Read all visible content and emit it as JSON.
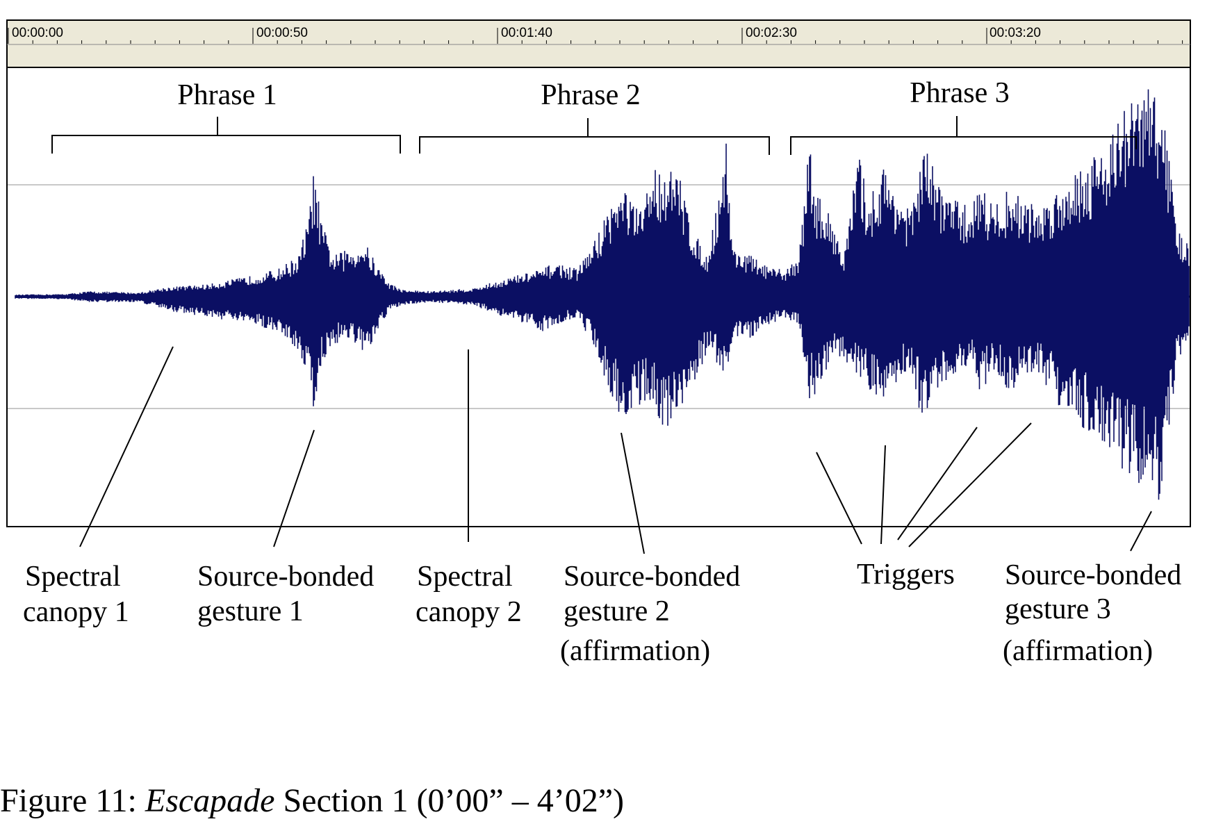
{
  "timeline": {
    "ticks": [
      "00:00:00",
      "00:00:50",
      "00:01:40",
      "00:02:30",
      "00:03:20"
    ]
  },
  "colors": {
    "waveform": "#0b0f63",
    "ruler_bg": "#ece9d8",
    "grid": "#c8c8c8"
  },
  "phrases": [
    "Phrase 1",
    "Phrase 2",
    "Phrase 3"
  ],
  "annotations": {
    "spectral_canopy_1": [
      "Spectral",
      "canopy 1"
    ],
    "source_bonded_gesture_1": [
      "Source-bonded",
      "gesture 1"
    ],
    "spectral_canopy_2": [
      "Spectral",
      "canopy 2"
    ],
    "source_bonded_gesture_2": [
      "Source-bonded",
      "gesture 2",
      "(affirmation)"
    ],
    "triggers": [
      "Triggers"
    ],
    "source_bonded_gesture_3": [
      "Source-bonded",
      "gesture 3",
      "(affirmation)"
    ]
  },
  "caption": {
    "prefix": "Figure 11: ",
    "title": "Escapade",
    "suffix": " Section 1 (0’00” – 4’02”)"
  }
}
